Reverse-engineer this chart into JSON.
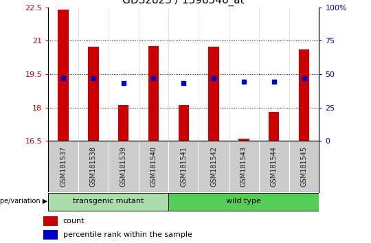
{
  "title": "GDS2823 / 1398546_at",
  "samples": [
    "GSM181537",
    "GSM181538",
    "GSM181539",
    "GSM181540",
    "GSM181541",
    "GSM181542",
    "GSM181543",
    "GSM181544",
    "GSM181545"
  ],
  "bar_values": [
    22.4,
    20.72,
    18.1,
    20.75,
    18.1,
    20.72,
    16.6,
    17.8,
    20.6
  ],
  "bar_base": 16.5,
  "blue_values": [
    19.3,
    19.3,
    19.1,
    19.3,
    19.1,
    19.3,
    19.15,
    19.15,
    19.3
  ],
  "bar_color": "#cc0000",
  "blue_color": "#0000cc",
  "ylim_left": [
    16.5,
    22.5
  ],
  "ylim_right": [
    0,
    100
  ],
  "yticks_left": [
    16.5,
    18.0,
    19.5,
    21.0,
    22.5
  ],
  "ytick_labels_left": [
    "16.5",
    "18",
    "19.5",
    "21",
    "22.5"
  ],
  "yticks_right": [
    0,
    25,
    50,
    75,
    100
  ],
  "ytick_labels_right": [
    "0",
    "25",
    "50",
    "75",
    "100%"
  ],
  "groups": [
    {
      "label": "transgenic mutant",
      "start": 0,
      "end": 3
    },
    {
      "label": "wild type",
      "start": 4,
      "end": 8
    }
  ],
  "group_label": "genotype/variation",
  "background_color": "#ffffff",
  "bar_width": 0.35,
  "title_fontsize": 11,
  "tick_label_color_left": "#cc0000",
  "tick_label_color_right": "#0000bb",
  "grid_lines": [
    18.0,
    19.5,
    21.0
  ],
  "col_separator_color": "#ffffff",
  "sample_bg_color": "#cccccc",
  "group_colors": [
    "#aaddaa",
    "#55cc55"
  ]
}
